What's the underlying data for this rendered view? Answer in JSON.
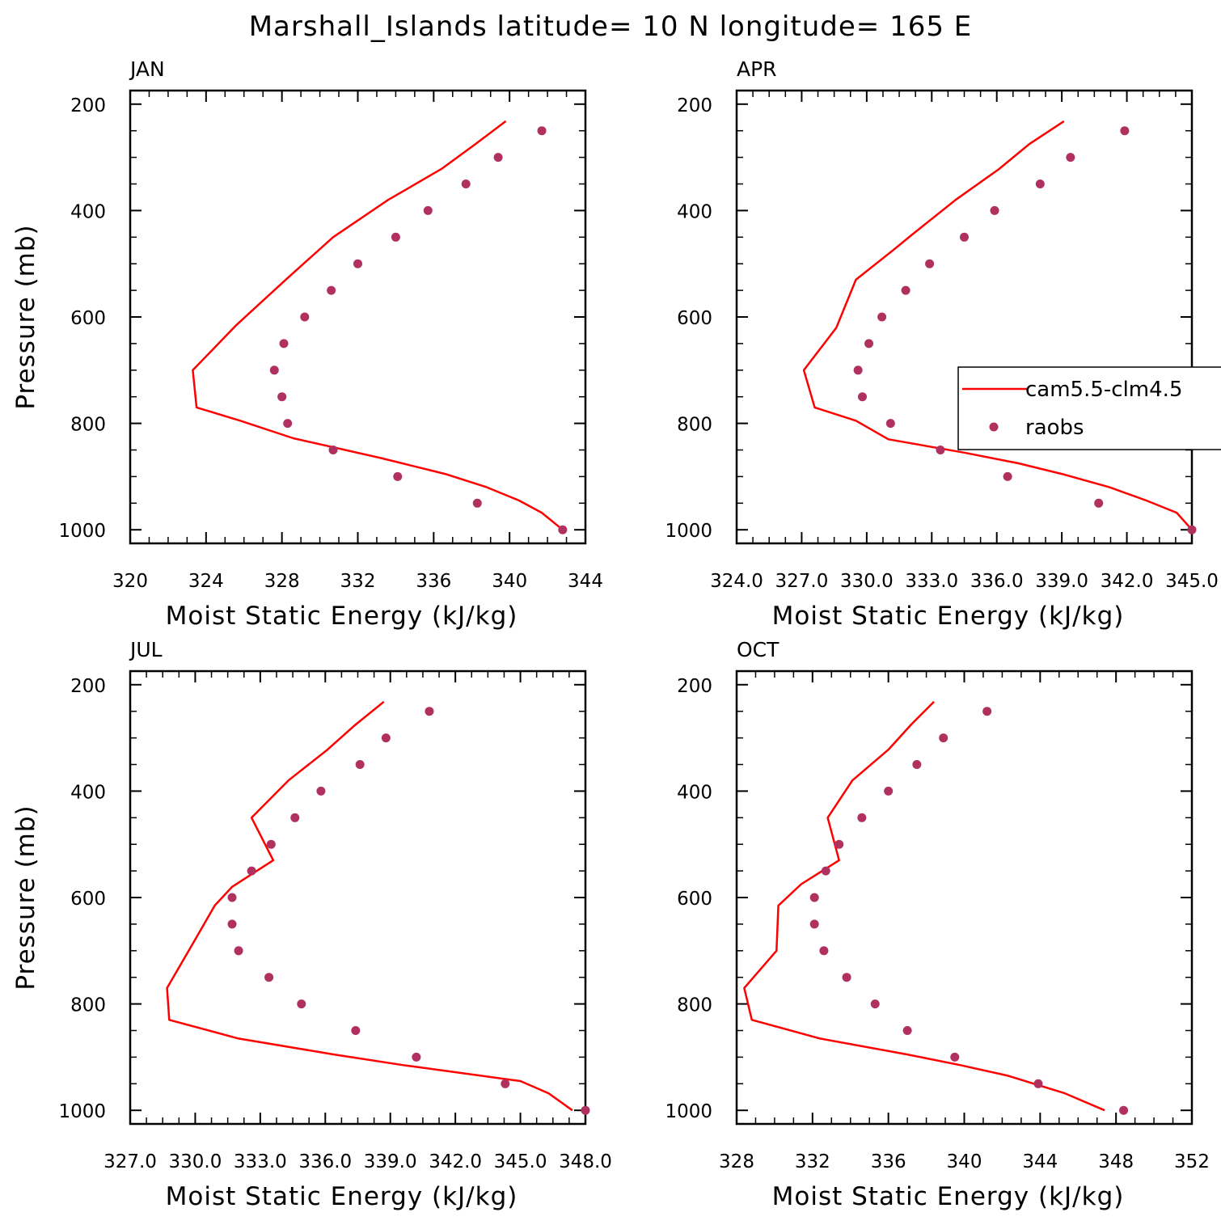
{
  "title": "Marshall_Islands  latitude= 10 N longitude= 165 E",
  "colors": {
    "model": "#ff0000",
    "obs": "#b03060",
    "axis": "#000000"
  },
  "legend": {
    "model_label": "cam5.5-clm4.5",
    "obs_label": "raobs"
  },
  "chart_data": [
    {
      "type": "line",
      "panel": "JAN",
      "xlabel": "Moist Static Energy (kJ/kg)",
      "ylabel": "Pressure (mb)",
      "xlim": [
        320,
        344
      ],
      "ylim": [
        200,
        1000
      ],
      "y_inverted": true,
      "xticks": [
        320,
        324,
        328,
        332,
        336,
        340,
        344
      ],
      "xtick_labels": [
        "320",
        "324",
        "328",
        "332",
        "336",
        "340",
        "344"
      ],
      "yticks": [
        200,
        400,
        600,
        800,
        1000
      ],
      "ytick_labels": [
        "200",
        "400",
        "600",
        "800",
        "1000"
      ],
      "series": [
        {
          "name": "cam5.5-clm4.5",
          "kind": "line",
          "x": [
            339.8,
            338.2,
            336.4,
            333.6,
            330.7,
            328.2,
            325.6,
            323.3,
            323.5,
            325.8,
            328.6,
            333.2,
            336.6,
            338.8,
            340.5,
            341.7,
            342.8
          ],
          "y": [
            232,
            275,
            322,
            380,
            450,
            530,
            615,
            700,
            770,
            795,
            828,
            865,
            895,
            920,
            945,
            968,
            1000
          ]
        },
        {
          "name": "raobs",
          "kind": "scatter",
          "x": [
            341.7,
            339.4,
            337.7,
            335.7,
            334.0,
            332.0,
            330.6,
            329.2,
            328.1,
            327.6,
            328.0,
            328.3,
            330.7,
            334.1,
            338.3,
            342.8
          ],
          "y": [
            250,
            300,
            350,
            400,
            450,
            500,
            550,
            600,
            650,
            700,
            750,
            800,
            850,
            900,
            950,
            1000
          ]
        }
      ]
    },
    {
      "type": "line",
      "panel": "APR",
      "xlabel": "Moist Static Energy (kJ/kg)",
      "ylabel": "",
      "xlim": [
        324.0,
        345.0
      ],
      "ylim": [
        200,
        1000
      ],
      "y_inverted": true,
      "xticks": [
        324,
        327,
        330,
        333,
        336,
        339,
        342,
        345
      ],
      "xtick_labels": [
        "324.0",
        "327.0",
        "330.0",
        "333.0",
        "336.0",
        "339.0",
        "342.0",
        "345.0"
      ],
      "yticks": [
        200,
        400,
        600,
        800,
        1000
      ],
      "ytick_labels": [
        "200",
        "400",
        "600",
        "800",
        "1000"
      ],
      "legend_position": "right",
      "series": [
        {
          "name": "cam5.5-clm4.5",
          "kind": "line",
          "x": [
            339.1,
            337.5,
            336.1,
            334.1,
            332.1,
            331.2,
            329.5,
            328.6,
            327.1,
            327.6,
            329.5,
            331.0,
            334.5,
            337.0,
            339.0,
            341.2,
            342.9,
            344.3,
            345.0
          ],
          "y": [
            232,
            275,
            322,
            380,
            445,
            475,
            530,
            620,
            700,
            770,
            795,
            830,
            855,
            875,
            895,
            920,
            945,
            968,
            1000
          ]
        },
        {
          "name": "raobs",
          "kind": "scatter",
          "x": [
            341.9,
            339.4,
            338.0,
            335.9,
            334.5,
            332.9,
            331.8,
            330.7,
            330.1,
            329.6,
            329.8,
            331.1,
            333.4,
            336.5,
            340.7,
            345.0
          ],
          "y": [
            250,
            300,
            350,
            400,
            450,
            500,
            550,
            600,
            650,
            700,
            750,
            800,
            850,
            900,
            950,
            1000
          ]
        }
      ]
    },
    {
      "type": "line",
      "panel": "JUL",
      "xlabel": "Moist Static Energy (kJ/kg)",
      "ylabel": "Pressure (mb)",
      "xlim": [
        327.0,
        348.0
      ],
      "ylim": [
        200,
        1000
      ],
      "y_inverted": true,
      "xticks": [
        327,
        330,
        333,
        336,
        339,
        342,
        345,
        348
      ],
      "xtick_labels": [
        "327.0",
        "330.0",
        "333.0",
        "336.0",
        "339.0",
        "342.0",
        "345.0",
        "348.0"
      ],
      "yticks": [
        200,
        400,
        600,
        800,
        1000
      ],
      "ytick_labels": [
        "200",
        "400",
        "600",
        "800",
        "1000"
      ],
      "series": [
        {
          "name": "cam5.5-clm4.5",
          "kind": "line",
          "x": [
            338.7,
            337.4,
            336.1,
            334.3,
            332.6,
            333.6,
            331.7,
            330.9,
            329.7,
            328.7,
            328.8,
            332.0,
            336.4,
            339.6,
            342.3,
            345.0,
            346.3,
            347.4
          ],
          "y": [
            232,
            275,
            322,
            380,
            450,
            530,
            580,
            615,
            700,
            770,
            830,
            865,
            895,
            915,
            930,
            945,
            968,
            1000
          ]
        },
        {
          "name": "raobs",
          "kind": "scatter",
          "x": [
            340.8,
            338.8,
            337.6,
            335.8,
            334.6,
            333.5,
            332.6,
            331.7,
            331.7,
            332.0,
            333.4,
            334.9,
            337.4,
            340.2,
            344.3,
            348.0
          ],
          "y": [
            250,
            300,
            350,
            400,
            450,
            500,
            550,
            600,
            650,
            700,
            750,
            800,
            850,
            900,
            950,
            1000
          ]
        }
      ]
    },
    {
      "type": "line",
      "panel": "OCT",
      "xlabel": "Moist Static Energy (kJ/kg)",
      "ylabel": "",
      "xlim": [
        328,
        352
      ],
      "ylim": [
        200,
        1000
      ],
      "y_inverted": true,
      "xticks": [
        328,
        332,
        336,
        340,
        344,
        348,
        352
      ],
      "xtick_labels": [
        "328",
        "332",
        "336",
        "340",
        "344",
        "348",
        "352"
      ],
      "yticks": [
        200,
        400,
        600,
        800,
        1000
      ],
      "ytick_labels": [
        "200",
        "400",
        "600",
        "800",
        "1000"
      ],
      "series": [
        {
          "name": "cam5.5-clm4.5",
          "kind": "line",
          "x": [
            338.4,
            337.2,
            336.0,
            334.1,
            332.8,
            333.4,
            331.4,
            330.2,
            330.1,
            328.4,
            328.8,
            332.4,
            337.0,
            339.8,
            342.3,
            345.3,
            347.4
          ],
          "y": [
            232,
            275,
            322,
            380,
            450,
            530,
            575,
            615,
            700,
            770,
            830,
            865,
            895,
            915,
            935,
            968,
            1000
          ]
        },
        {
          "name": "raobs",
          "kind": "scatter",
          "x": [
            341.2,
            338.9,
            337.5,
            336.0,
            334.6,
            333.4,
            332.7,
            332.1,
            332.1,
            332.6,
            333.8,
            335.3,
            337.0,
            339.5,
            343.9,
            348.4
          ],
          "y": [
            250,
            300,
            350,
            400,
            450,
            500,
            550,
            600,
            650,
            700,
            750,
            800,
            850,
            900,
            950,
            1000
          ]
        }
      ]
    }
  ]
}
